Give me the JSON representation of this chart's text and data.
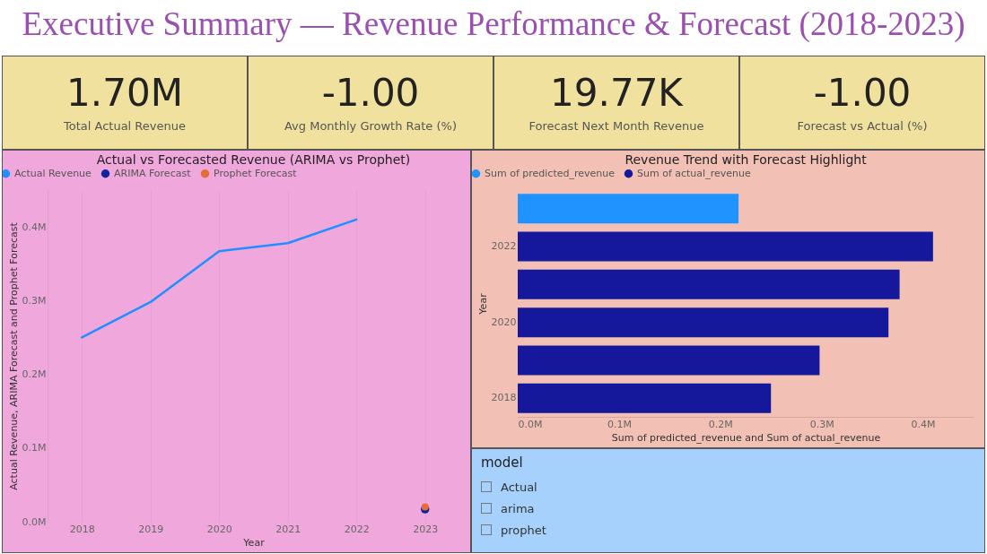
{
  "chart_data": [
    {
      "type": "other",
      "title": "Executive Summary — Revenue Performance & Forecast (2018-2023)",
      "annotations": [
        "1.70M",
        "Total Actual Revenue",
        "-1.00",
        "Avg Monthly Growth Rate (%)",
        "19.77K",
        "Forecast Next Month Revenue",
        "-1.00",
        "Forecast vs Actual (%)"
      ]
    },
    {
      "type": "line",
      "title": "Actual vs Forecasted Revenue (ARIMA vs Prophet)",
      "xlabel": "Year",
      "ylabel": "Actual Revenue, ARIMA Forecast and Prophet Forecast",
      "categories": [
        "2018",
        "2019",
        "2020",
        "2021",
        "2022",
        "2023"
      ],
      "series": [
        {
          "name": "Actual Revenue",
          "color": "#1e90ff",
          "values": [
            250000,
            298000,
            367000,
            378000,
            410000,
            null
          ]
        },
        {
          "name": "ARIMA Forecast",
          "color": "#12239e",
          "type": "scatter",
          "values": [
            null,
            null,
            null,
            null,
            null,
            17000
          ]
        },
        {
          "name": "Prophet Forecast",
          "color": "#e66c37",
          "type": "scatter",
          "values": [
            null,
            null,
            null,
            null,
            null,
            20000
          ]
        }
      ],
      "ylim": [
        0,
        450000
      ],
      "yticks": [
        {
          "value": 0,
          "label": "0.0M"
        },
        {
          "value": 100000,
          "label": "0.1M"
        },
        {
          "value": 200000,
          "label": "0.2M"
        },
        {
          "value": 300000,
          "label": "0.3M"
        },
        {
          "value": 400000,
          "label": "0.4M"
        }
      ],
      "grid": "x",
      "legend": "top left",
      "line_style": "solid"
    },
    {
      "type": "bar",
      "orientation": "horizontal",
      "title": "Revenue Trend with Forecast Highlight",
      "xlabel": "Sum of predicted_revenue and Sum of actual_revenue",
      "ylabel": "Year",
      "categories": [
        null,
        "2022",
        null,
        "2020",
        null,
        "2018"
      ],
      "series": [
        {
          "name": "Sum of predicted_revenue",
          "color": "#1f93ff",
          "values": [
            218000,
            null,
            null,
            null,
            null,
            null
          ]
        },
        {
          "name": "Sum of actual_revenue",
          "color": "#15189a",
          "values": [
            null,
            410000,
            377000,
            366000,
            298000,
            250000
          ]
        }
      ],
      "xlim": [
        0,
        450000
      ],
      "xticks": [
        {
          "value": 0,
          "label": "0.0M"
        },
        {
          "value": 100000,
          "label": "0.1M"
        },
        {
          "value": 200000,
          "label": "0.2M"
        },
        {
          "value": 300000,
          "label": "0.3M"
        },
        {
          "value": 400000,
          "label": "0.4M"
        }
      ],
      "legend": "top left"
    },
    {
      "type": "other",
      "title": "model",
      "annotations": [
        "Actual",
        "arima",
        "prophet"
      ]
    }
  ]
}
